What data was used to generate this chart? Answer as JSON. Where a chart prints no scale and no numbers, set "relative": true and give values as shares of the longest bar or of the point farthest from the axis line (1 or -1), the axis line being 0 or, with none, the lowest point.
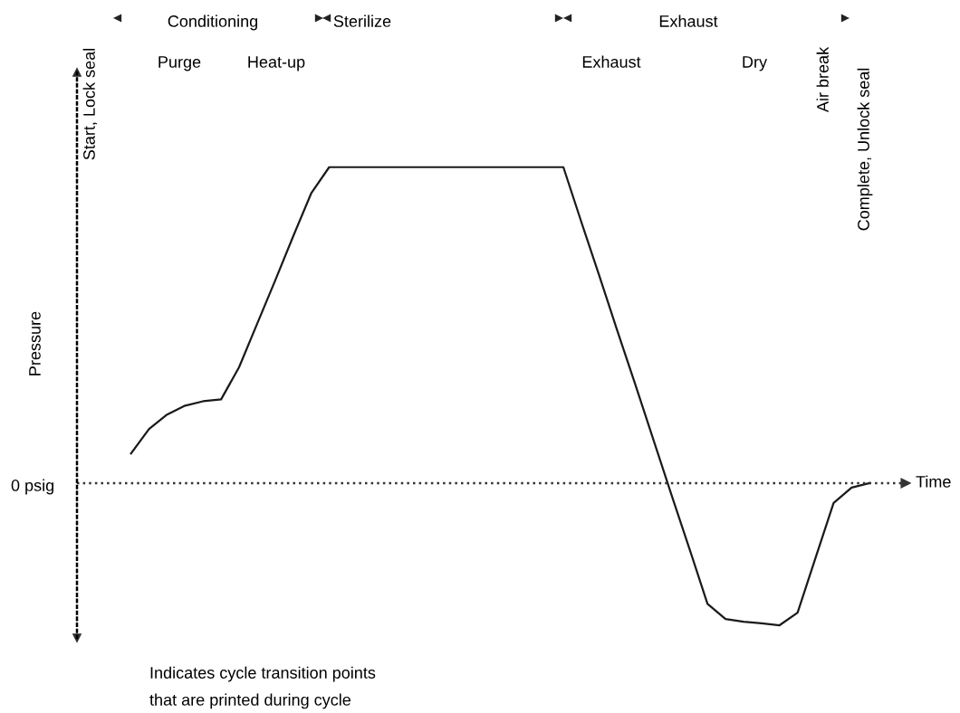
{
  "chart_data": {
    "type": "line",
    "relative": true,
    "xlabel": "Time",
    "ylabel": "Pressure",
    "categories": [
      null,
      null,
      null,
      null,
      null,
      null,
      null,
      null,
      null,
      null,
      null,
      null,
      null,
      null,
      null,
      null,
      null,
      null,
      null,
      null,
      null,
      null,
      null,
      null,
      null,
      null,
      null,
      null,
      null,
      null,
      null,
      null,
      null,
      null,
      null,
      null,
      null,
      null,
      null,
      null,
      null,
      null,
      null,
      null
    ],
    "series": [
      {
        "color": "#1a1a1a",
        "values": [
          null,
          0.094,
          0.171,
          0.217,
          0.245,
          0.259,
          0.265,
          0.367,
          0.504,
          0.641,
          0.781,
          0.917,
          1,
          1,
          1,
          1,
          1,
          1,
          1,
          1,
          1,
          1,
          1,
          1,
          1,
          1,
          0.826,
          0.655,
          0.481,
          0.311,
          0.137,
          -0.037,
          -0.208,
          -0.382,
          -0.43,
          -0.439,
          -0.444,
          -0.45,
          -0.41,
          -0.236,
          -0.063,
          -0.014,
          0,
          null
        ]
      }
    ],
    "annotations": [
      "0 psig",
      "Conditioning",
      "Sterilize",
      "Exhaust",
      "Purge",
      "Heat-up",
      "Exhaust",
      "Dry",
      "Air break",
      "Start, Lock seal",
      "Complete, Unlock seal",
      "Indicates cycle transition points\nthat are printed during cycle"
    ],
    "ref_lines": [
      {
        "axis": "y",
        "value": 0,
        "line_style": "dotted",
        "color": "#333333"
      }
    ],
    "grid": false,
    "marker": "none",
    "line_style": "solid"
  }
}
